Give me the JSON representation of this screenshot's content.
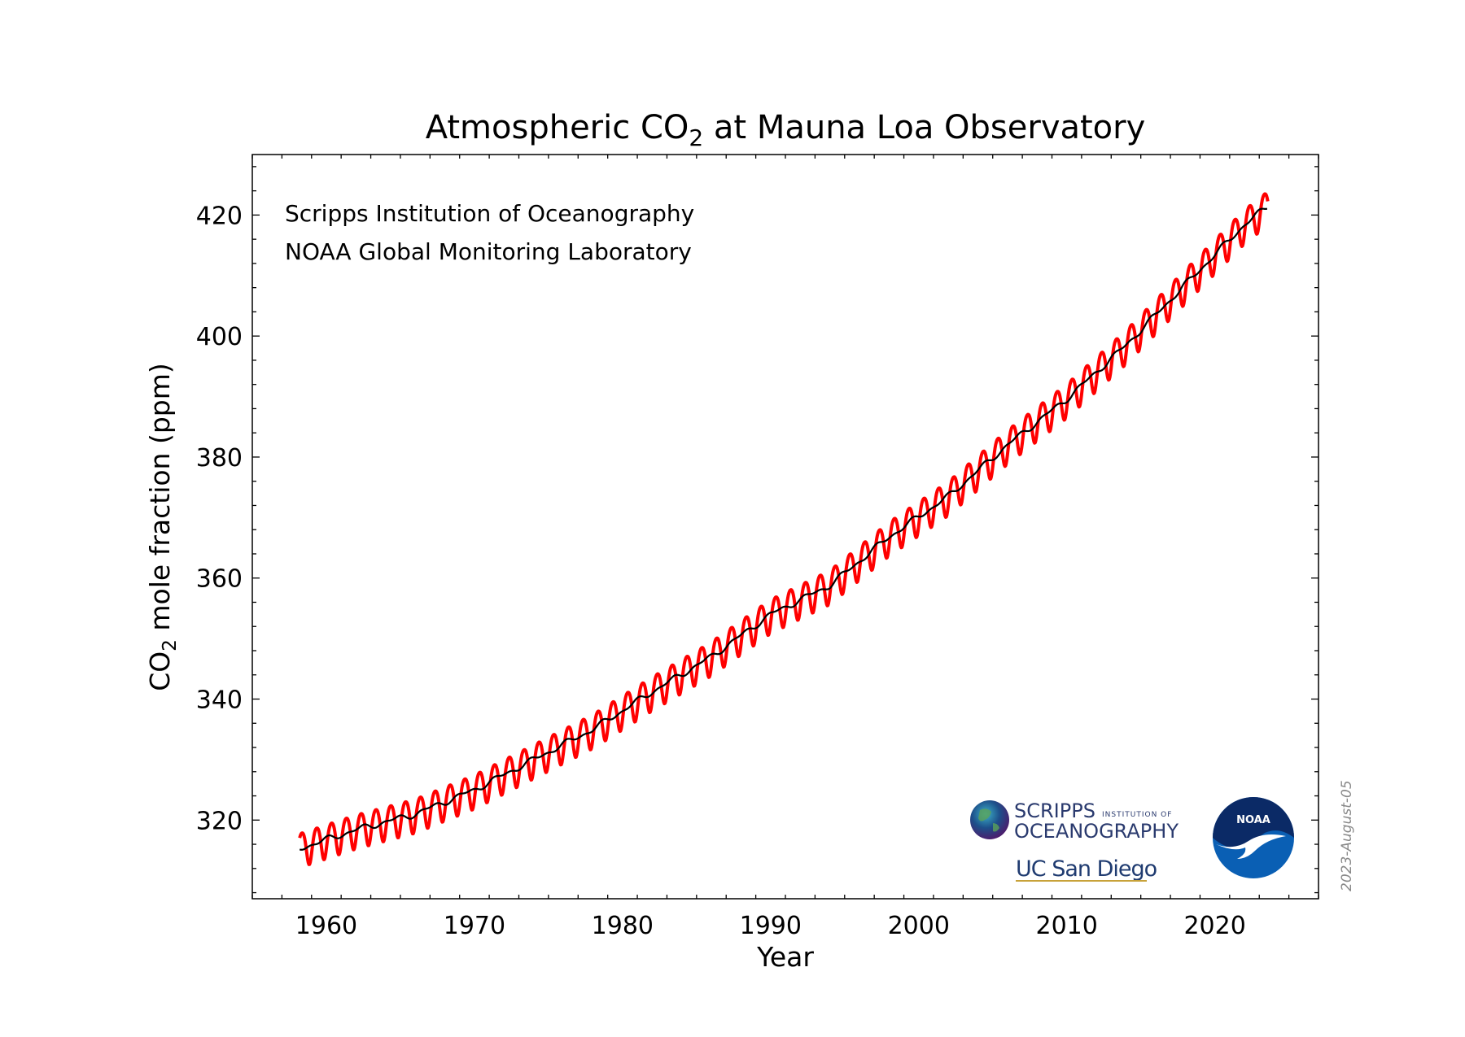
{
  "chart_data": {
    "type": "line",
    "title_pre": "Atmospheric CO",
    "title_sub": "2",
    "title_post": " at Mauna Loa Observatory",
    "xlabel": "Year",
    "ylabel_pre": "CO",
    "ylabel_sub": "2",
    "ylabel_post": " mole fraction (ppm)",
    "xlim": [
      1955,
      2027
    ],
    "ylim": [
      307,
      430
    ],
    "x_ticks": [
      1960,
      1970,
      1980,
      1990,
      2000,
      2010,
      2020
    ],
    "y_ticks": [
      320,
      340,
      360,
      380,
      400,
      420
    ],
    "x_tick_labels": [
      "1960",
      "1970",
      "1980",
      "1990",
      "2000",
      "2010",
      "2020"
    ],
    "y_tick_labels": [
      "320",
      "340",
      "360",
      "380",
      "400",
      "420"
    ],
    "grid": false,
    "series": [
      {
        "kind": "monthly",
        "color": "#ff0000",
        "x": [
          1958.2,
          1962,
          1966,
          1970,
          1974,
          1978,
          1982,
          1986,
          1990,
          1994,
          1998,
          2002,
          2006,
          2010,
          2014,
          2018,
          2022,
          2023.6
        ],
        "y": [
          315.3,
          318.4,
          321.0,
          325.0,
          330.0,
          335.0,
          341.2,
          347.0,
          354.0,
          358.8,
          366.8,
          373.5,
          382.0,
          389.6,
          398.5,
          408.5,
          418.4,
          421.5
        ],
        "seasonal_amplitude_ppm": 3.2
      },
      {
        "kind": "deseasonalized",
        "color": "#000000",
        "x": [
          1958.2,
          1962,
          1966,
          1970,
          1974,
          1978,
          1982,
          1986,
          1990,
          1994,
          1998,
          2002,
          2006,
          2010,
          2014,
          2018,
          2022,
          2023.6
        ],
        "y": [
          315.3,
          318.4,
          321.0,
          325.0,
          330.0,
          335.0,
          341.2,
          347.0,
          354.0,
          358.8,
          366.8,
          373.5,
          382.0,
          389.6,
          398.5,
          408.5,
          418.4,
          421.5
        ]
      }
    ],
    "annotations": [
      "Scripps Institution of Oceanography",
      "NOAA Global Monitoring Laboratory"
    ],
    "date_stamp": "2023-August-05"
  },
  "logos": {
    "scripps_line1": "SCRIPPS",
    "scripps_small": "INSTITUTION OF",
    "scripps_line2": "OCEANOGRAPHY",
    "ucsd": "UC San Diego",
    "noaa": "NOAA",
    "noaa_color": "#0a5fb4",
    "noaa_dark": "#0b2a66"
  }
}
